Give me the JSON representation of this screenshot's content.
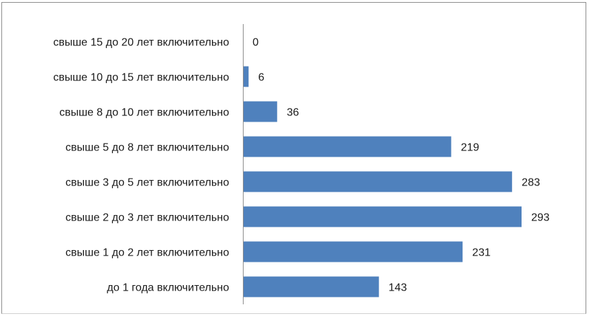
{
  "chart_data": {
    "type": "bar",
    "orientation": "horizontal",
    "categories": [
      "до 1 года включительно",
      "свыше 1 до 2 лет включительно",
      "свыше 2 до 3 лет включительно",
      "свыше 3 до 5 лет включительно",
      "свыше 5 до 8 лет включительно",
      "свыше 8 до 10 лет включительно",
      "свыше 10 до 15 лет включительно",
      "свыше 15 до 20 лет включительно"
    ],
    "values": [
      143,
      231,
      293,
      283,
      219,
      36,
      6,
      0
    ],
    "title": "",
    "xlabel": "",
    "ylabel": "",
    "xlim": [
      0,
      300
    ],
    "grid": false,
    "legend": "none",
    "bar_color": "#4f81bd"
  }
}
